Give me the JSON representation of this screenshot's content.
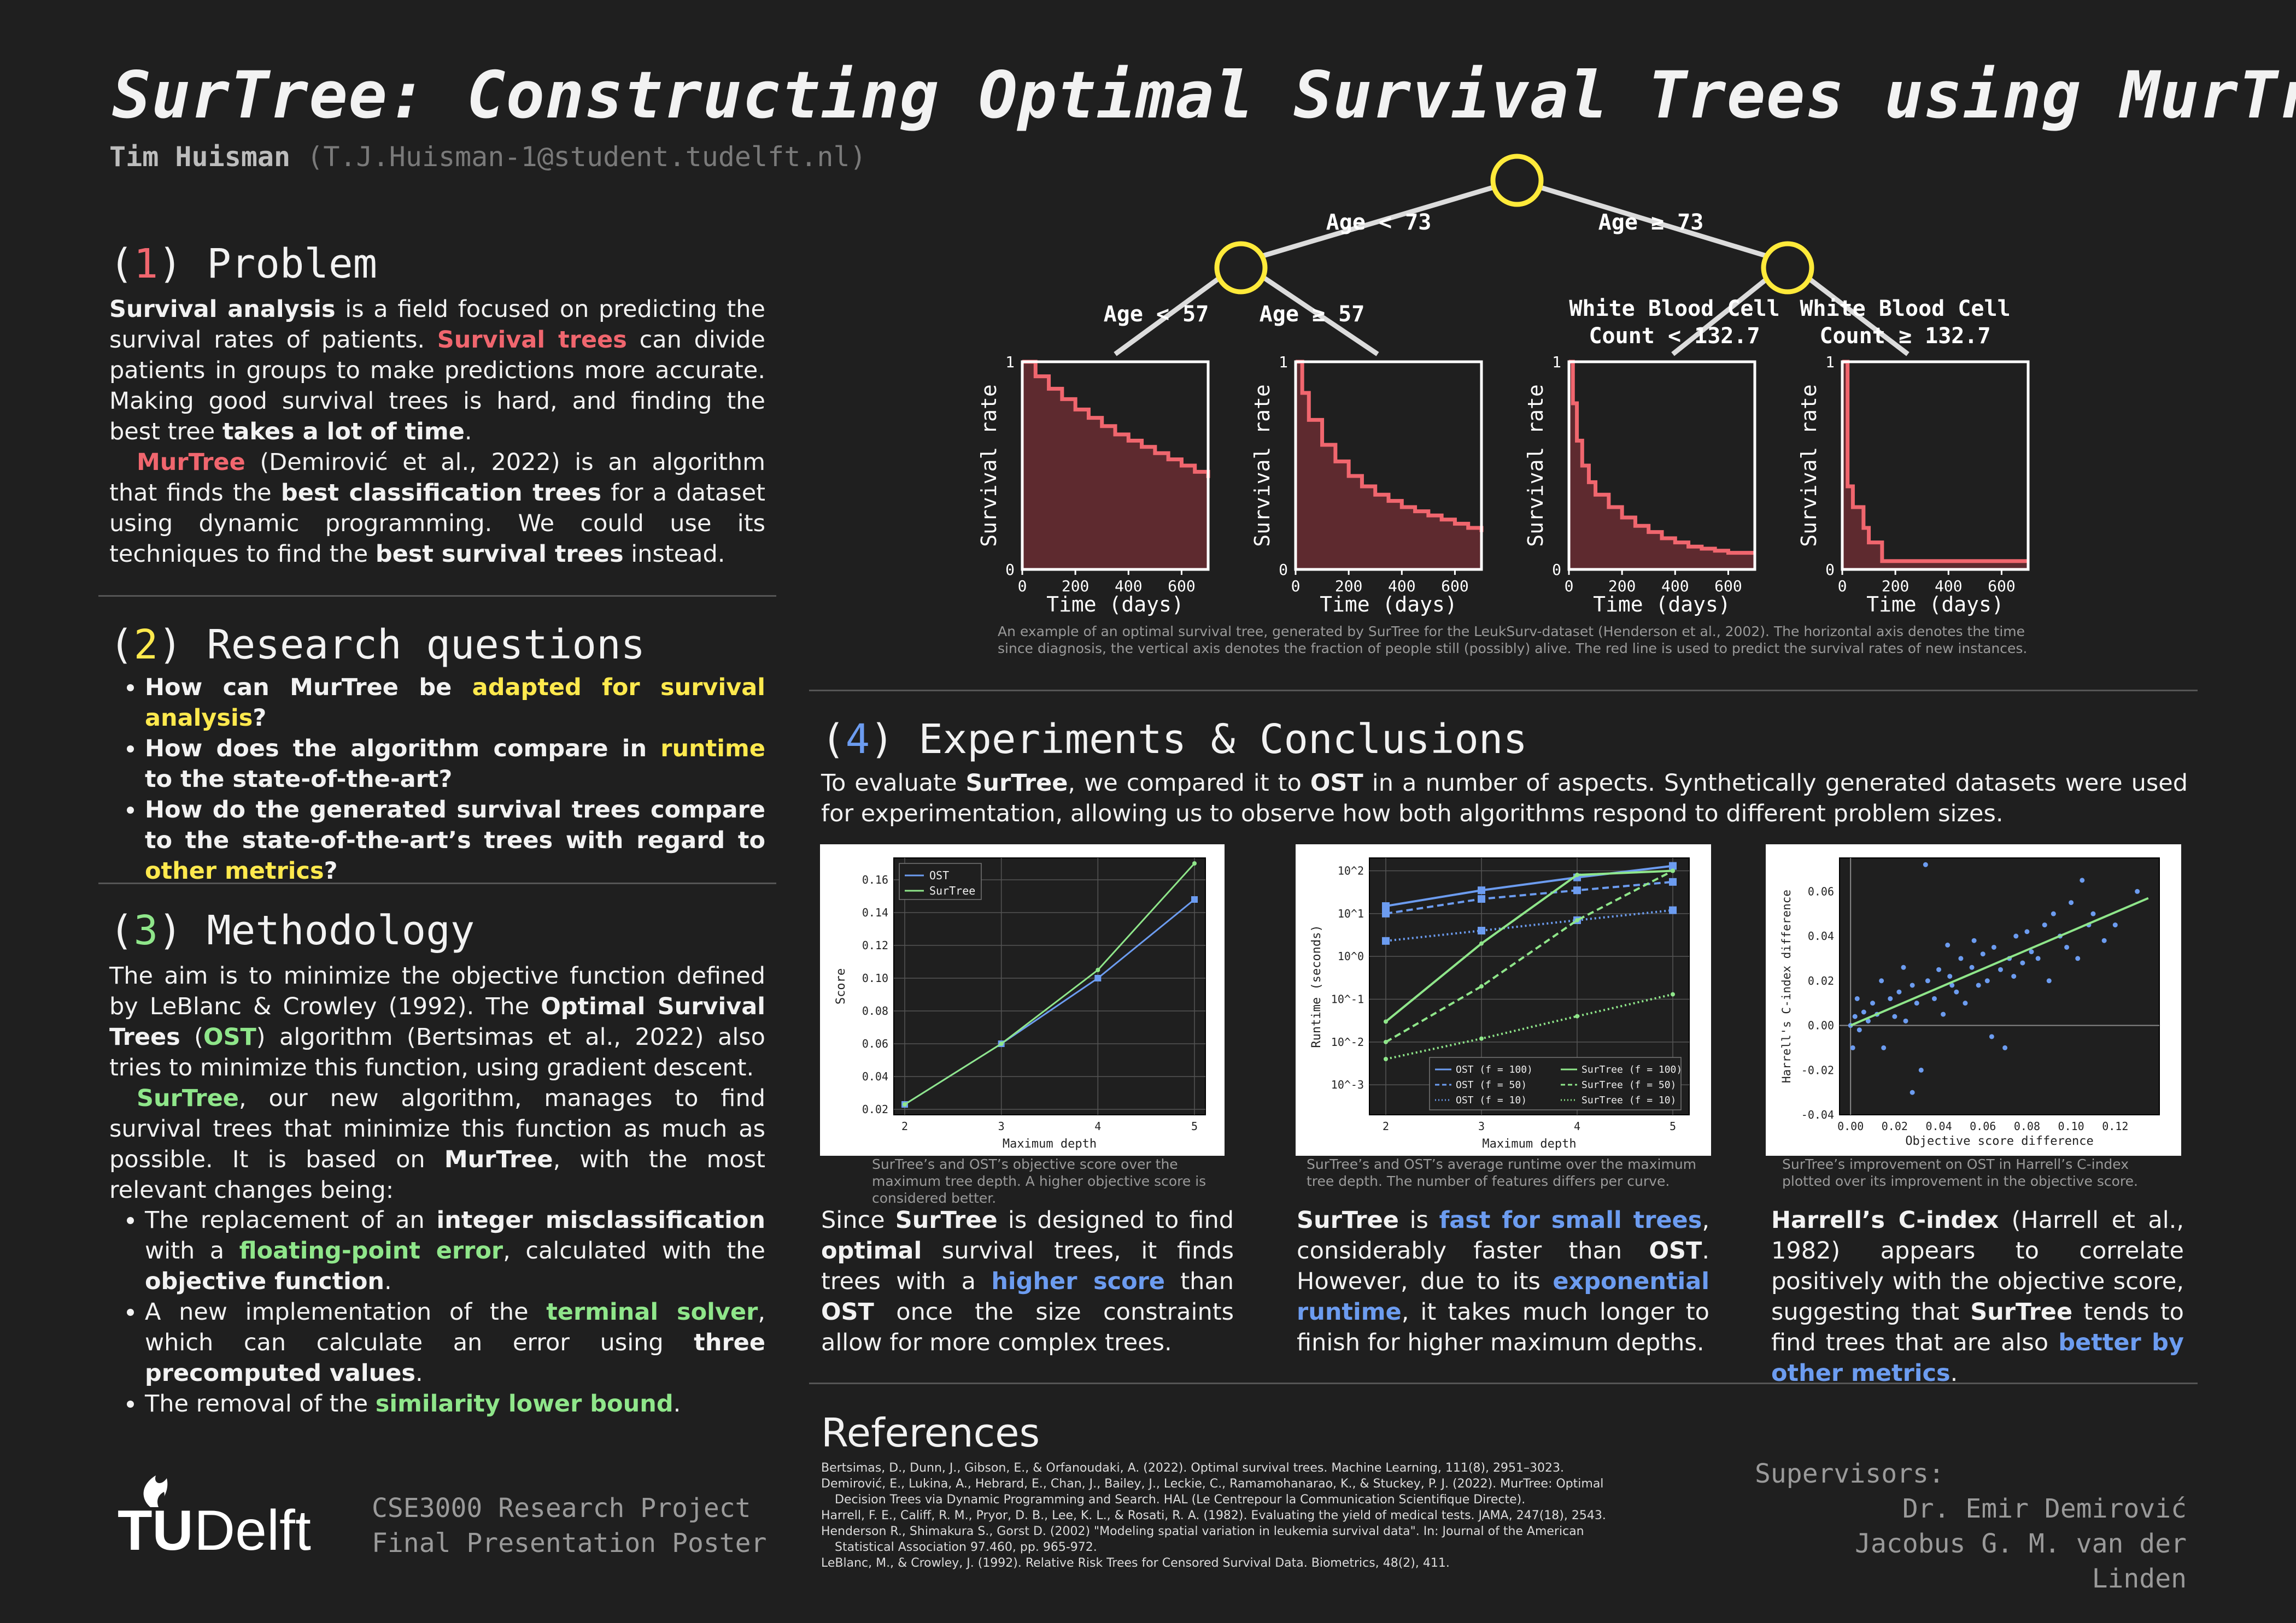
{
  "title": "SurTree: Constructing Optimal Survival Trees using MurTree",
  "author": {
    "name": "Tim Huisman",
    "email": "(T.J.Huisman-1@student.tudelft.nl)"
  },
  "colors": {
    "background": "#1f1f1f",
    "red": "#f0666e",
    "yellow": "#ffe94d",
    "green": "#8fe68a",
    "blue": "#6c9cf0"
  },
  "problem": {
    "num": "1",
    "heading": "Problem",
    "p1": [
      "Survival analysis",
      " is a field focused on predicting the survival rates of patients. ",
      "Survival trees",
      " can divide patients in groups to make predictions more accurate. Making good survival trees is hard, and finding the best tree ",
      "takes a lot of time",
      "."
    ],
    "p2": [
      "MurTree",
      " (Demirović et al., 2022) is an algorithm that finds the ",
      "best classification trees",
      " for a dataset using dynamic programming. We could use its techniques to find the ",
      "best survival trees",
      " instead."
    ]
  },
  "research": {
    "num": "2",
    "heading": "Research questions",
    "q1": [
      "How can MurTree be ",
      "adapted for survival analysis",
      "?"
    ],
    "q2": [
      "How does the algorithm compare in ",
      "runtime",
      " to the state-of-the-art?"
    ],
    "q3": [
      "How do the generated survival trees compare to the state-of-the-art’s trees with regard to ",
      "other metrics",
      "?"
    ]
  },
  "method": {
    "num": "3",
    "heading": "Methodology",
    "p1": [
      "The aim is to minimize the objective function defined by LeBlanc & Crowley (1992). The ",
      "Optimal Survival Trees",
      " (",
      "OST",
      ") algorithm (Bertsimas et al., 2022) also tries to minimize this function, using gradient descent."
    ],
    "p2": [
      "SurTree",
      ", our new algorithm, manages to find survival trees that minimize this function as much as possible. It is based on ",
      "MurTree",
      ", with the most relevant changes being:"
    ],
    "b1": [
      "The replacement of an ",
      "integer misclassification",
      " with a ",
      "floating-point error",
      ", calculated with the ",
      "objective function",
      "."
    ],
    "b2": [
      "A new implementation of the ",
      "terminal solver",
      ", which can calculate an error using ",
      "three precomputed values",
      "."
    ],
    "b3": [
      "The removal of the ",
      "similarity lower bound",
      "."
    ]
  },
  "tree": {
    "split_root_left": "Age < 73",
    "split_root_right": "Age ≥ 73",
    "split_l_left": "Age < 57",
    "split_l_right": "Age ≥ 57",
    "split_r_left_1": "White Blood Cell",
    "split_r_left_2": "Count < 132.7",
    "split_r_right_1": "White Blood Cell",
    "split_r_right_2": "Count ≥ 132.7",
    "caption": "An example of an optimal survival tree, generated by SurTree for the LeukSurv-dataset (Henderson et al., 2002). The horizontal axis denotes the time since diagnosis, the vertical axis denotes the fraction of people still (possibly) alive. The red line is used to predict the survival rates of new instances."
  },
  "experiments": {
    "num": "4",
    "heading": "Experiments & Conclusions",
    "intro": [
      "To evaluate ",
      "SurTree",
      ", we compared it to ",
      "OST",
      " in a number of aspects. Synthetically generated datasets were used for experimentation, allowing us to observe how both algorithms respond to different problem sizes."
    ],
    "cap1": "SurTree’s and OST’s objective score over the maximum tree depth. A higher objective score is considered better.",
    "cap2": "SurTree’s and OST’s average runtime over the maximum tree depth. The number of features differs per curve.",
    "cap3": "SurTree’s improvement on OST in Harrell’s C-index plotted over its improvement in the objective score.",
    "c1": [
      "Since ",
      "SurTree",
      " is designed to find ",
      "optimal",
      " survival trees, it finds trees with a ",
      "higher score",
      " than ",
      "OST",
      " once the size constraints allow for more complex trees."
    ],
    "c2": [
      "SurTree",
      " is ",
      "fast for small trees",
      ", considerably faster than ",
      "OST",
      ". However, due to its ",
      "exponential runtime",
      ", it takes much longer to finish for higher maximum depths."
    ],
    "c3": [
      "Harrell’s C-index",
      " (Harrell et al., 1982) appears to correlate positively with the objective score, suggesting that ",
      "SurTree",
      " tends to find trees that are also ",
      "better by other metrics",
      "."
    ]
  },
  "references": {
    "heading": "References",
    "items": [
      "Bertsimas, D., Dunn, J., Gibson, E., & Orfanoudaki, A. (2022). Optimal survival trees. Machine Learning, 111(8), 2951–3023.",
      "Demirović, E., Lukina, A., Hebrard, E., Chan, J., Bailey, J., Leckie, C., Ramamohanarao, K., & Stuckey, P. J. (2022). MurTree: Optimal Decision Trees via Dynamic Programming and Search. HAL (Le Centrepour la Communication Scientifique Directe).",
      "Harrell, F. E., Califf, R. M., Pryor, D. B., Lee, K. L., & Rosati, R. A. (1982). Evaluating the yield of medical tests. JAMA, 247(18), 2543.",
      "Henderson R., Shimakura S., Gorst D. (2002) \"Modeling spatial variation in leukemia survival data\". In: Journal of the American Statistical Association 97.460, pp. 965-972.",
      "LeBlanc, M., & Crowley, J. (1992). Relative Risk Trees for Censored Survival Data. Biometrics, 48(2), 411."
    ]
  },
  "footer": {
    "logo_tu": "TU",
    "logo_delft": "Delft",
    "course1": "CSE3000 Research Project",
    "course2": "Final Presentation Poster",
    "sup_label": "Supervisors:",
    "sup1": "Dr. Emir Demirović",
    "sup2": "Jacobus G. M. van der Linden"
  },
  "chart_data": [
    {
      "type": "step",
      "id": "km1",
      "xlabel": "Time (days)",
      "ylabel": "Survival rate",
      "xlim": [
        0,
        700
      ],
      "ylim": [
        0,
        1
      ],
      "xticks": [
        "0",
        "200",
        "400",
        "600"
      ],
      "yticks": [
        "0",
        "1"
      ],
      "x": [
        0,
        50,
        100,
        150,
        200,
        250,
        300,
        350,
        400,
        450,
        500,
        550,
        600,
        650,
        700
      ],
      "y": [
        1.0,
        0.93,
        0.87,
        0.82,
        0.77,
        0.73,
        0.69,
        0.65,
        0.62,
        0.59,
        0.56,
        0.53,
        0.5,
        0.47,
        0.44
      ]
    },
    {
      "type": "step",
      "id": "km2",
      "xlabel": "Time (days)",
      "ylabel": "Survival rate",
      "xlim": [
        0,
        700
      ],
      "ylim": [
        0,
        1
      ],
      "xticks": [
        "0",
        "200",
        "400",
        "600"
      ],
      "yticks": [
        "0",
        "1"
      ],
      "x": [
        0,
        25,
        50,
        100,
        150,
        200,
        250,
        300,
        350,
        400,
        450,
        500,
        550,
        600,
        650,
        700
      ],
      "y": [
        1.0,
        0.85,
        0.72,
        0.6,
        0.52,
        0.45,
        0.4,
        0.36,
        0.33,
        0.3,
        0.28,
        0.26,
        0.24,
        0.22,
        0.2,
        0.18
      ]
    },
    {
      "type": "step",
      "id": "km3",
      "xlabel": "Time (days)",
      "ylabel": "Survival rate",
      "xlim": [
        0,
        700
      ],
      "ylim": [
        0,
        1
      ],
      "xticks": [
        "0",
        "200",
        "400",
        "600"
      ],
      "yticks": [
        "0",
        "1"
      ],
      "x": [
        0,
        15,
        30,
        50,
        75,
        100,
        150,
        200,
        250,
        300,
        350,
        400,
        450,
        500,
        550,
        600,
        650,
        700
      ],
      "y": [
        1.0,
        0.8,
        0.62,
        0.5,
        0.42,
        0.36,
        0.3,
        0.25,
        0.21,
        0.18,
        0.15,
        0.13,
        0.11,
        0.1,
        0.09,
        0.08,
        0.08,
        0.08
      ]
    },
    {
      "type": "step",
      "id": "km4",
      "xlabel": "Time (days)",
      "ylabel": "Survival rate",
      "xlim": [
        0,
        700
      ],
      "ylim": [
        0,
        1
      ],
      "xticks": [
        "0",
        "200",
        "400",
        "600"
      ],
      "yticks": [
        "0",
        "1"
      ],
      "x": [
        0,
        20,
        40,
        60,
        80,
        100,
        120,
        150,
        700
      ],
      "y": [
        1.0,
        0.4,
        0.3,
        0.3,
        0.2,
        0.13,
        0.13,
        0.04,
        0.04
      ]
    },
    {
      "type": "line",
      "id": "score",
      "xlabel": "Maximum depth",
      "ylabel": "Score",
      "xlim": [
        2,
        5
      ],
      "ylim": [
        0.02,
        0.17
      ],
      "yticks": [
        0.02,
        0.04,
        0.06,
        0.08,
        0.1,
        0.12,
        0.14,
        0.16
      ],
      "x": [
        2,
        3,
        4,
        5
      ],
      "series": [
        {
          "name": "OST",
          "values": [
            0.023,
            0.06,
            0.1,
            0.148
          ],
          "color": "#6c9cf0"
        },
        {
          "name": "SurTree",
          "values": [
            0.023,
            0.06,
            0.105,
            0.17
          ],
          "color": "#8fe68a"
        }
      ],
      "legend": "top-left"
    },
    {
      "type": "line",
      "id": "runtime",
      "xlabel": "Maximum depth",
      "ylabel": "Runtime (seconds)",
      "xlim": [
        2,
        5
      ],
      "yscale": "log",
      "ylim_exp": [
        -3.7,
        2.3
      ],
      "yticks": [
        "10^-3",
        "10^-2",
        "10^-1",
        "10^0",
        "10^1",
        "10^2"
      ],
      "x": [
        2,
        3,
        4,
        5
      ],
      "series": [
        {
          "name": "OST (f = 100)",
          "values": [
            15,
            35,
            70,
            130
          ],
          "color": "#6c9cf0",
          "style": "solid"
        },
        {
          "name": "OST (f = 50)",
          "values": [
            10,
            22,
            35,
            55
          ],
          "color": "#6c9cf0",
          "style": "dashed"
        },
        {
          "name": "OST (f = 10)",
          "values": [
            2.3,
            4,
            7,
            12
          ],
          "color": "#6c9cf0",
          "style": "dotted"
        },
        {
          "name": "SurTree (f = 100)",
          "values": [
            0.03,
            2,
            80,
            100
          ],
          "color": "#8fe68a",
          "style": "solid"
        },
        {
          "name": "SurTree (f = 50)",
          "values": [
            0.01,
            0.2,
            7,
            100
          ],
          "color": "#8fe68a",
          "style": "dashed"
        },
        {
          "name": "SurTree (f = 10)",
          "values": [
            0.004,
            0.012,
            0.04,
            0.13
          ],
          "color": "#8fe68a",
          "style": "dotted"
        }
      ],
      "legend": "lower-right"
    },
    {
      "type": "scatter",
      "id": "cindex",
      "xlabel": "Objective score difference",
      "ylabel": "Harrell's C-index difference",
      "xlim": [
        -0.005,
        0.14
      ],
      "ylim": [
        -0.04,
        0.075
      ],
      "xticks": [
        0,
        0.02,
        0.04,
        0.06,
        0.08,
        0.1,
        0.12
      ],
      "yticks": [
        -0.04,
        -0.02,
        0,
        0.02,
        0.04,
        0.06
      ],
      "fit": {
        "x": [
          0,
          0.135
        ],
        "y": [
          0.0,
          0.057
        ]
      },
      "points": [
        [
          0.0,
          0.0
        ],
        [
          0.002,
          0.004
        ],
        [
          0.004,
          -0.002
        ],
        [
          0.006,
          0.006
        ],
        [
          0.008,
          0.002
        ],
        [
          0.01,
          0.01
        ],
        [
          0.012,
          0.005
        ],
        [
          0.015,
          -0.01
        ],
        [
          0.018,
          0.012
        ],
        [
          0.02,
          0.004
        ],
        [
          0.022,
          0.015
        ],
        [
          0.025,
          0.002
        ],
        [
          0.028,
          0.018
        ],
        [
          0.03,
          0.01
        ],
        [
          0.032,
          -0.02
        ],
        [
          0.035,
          0.02
        ],
        [
          0.038,
          0.012
        ],
        [
          0.04,
          0.025
        ],
        [
          0.042,
          0.005
        ],
        [
          0.045,
          0.022
        ],
        [
          0.048,
          0.015
        ],
        [
          0.05,
          0.03
        ],
        [
          0.052,
          0.01
        ],
        [
          0.055,
          0.026
        ],
        [
          0.058,
          0.018
        ],
        [
          0.06,
          0.032
        ],
        [
          0.062,
          0.02
        ],
        [
          0.065,
          0.035
        ],
        [
          0.068,
          0.025
        ],
        [
          0.07,
          -0.01
        ],
        [
          0.072,
          0.03
        ],
        [
          0.075,
          0.04
        ],
        [
          0.078,
          0.028
        ],
        [
          0.08,
          0.042
        ],
        [
          0.082,
          0.033
        ],
        [
          0.085,
          0.03
        ],
        [
          0.088,
          0.045
        ],
        [
          0.09,
          0.02
        ],
        [
          0.092,
          0.05
        ],
        [
          0.095,
          0.04
        ],
        [
          0.098,
          0.035
        ],
        [
          0.1,
          0.055
        ],
        [
          0.103,
          0.03
        ],
        [
          0.105,
          0.065
        ],
        [
          0.108,
          0.045
        ],
        [
          0.11,
          0.05
        ],
        [
          0.115,
          0.038
        ],
        [
          0.12,
          0.045
        ],
        [
          0.13,
          0.06
        ],
        [
          0.034,
          0.072
        ],
        [
          0.028,
          -0.03
        ],
        [
          0.003,
          0.012
        ],
        [
          0.001,
          -0.01
        ],
        [
          0.014,
          0.02
        ],
        [
          0.024,
          0.026
        ],
        [
          0.044,
          0.036
        ],
        [
          0.064,
          -0.005
        ],
        [
          0.046,
          0.018
        ],
        [
          0.056,
          0.038
        ],
        [
          0.074,
          0.022
        ]
      ]
    }
  ]
}
